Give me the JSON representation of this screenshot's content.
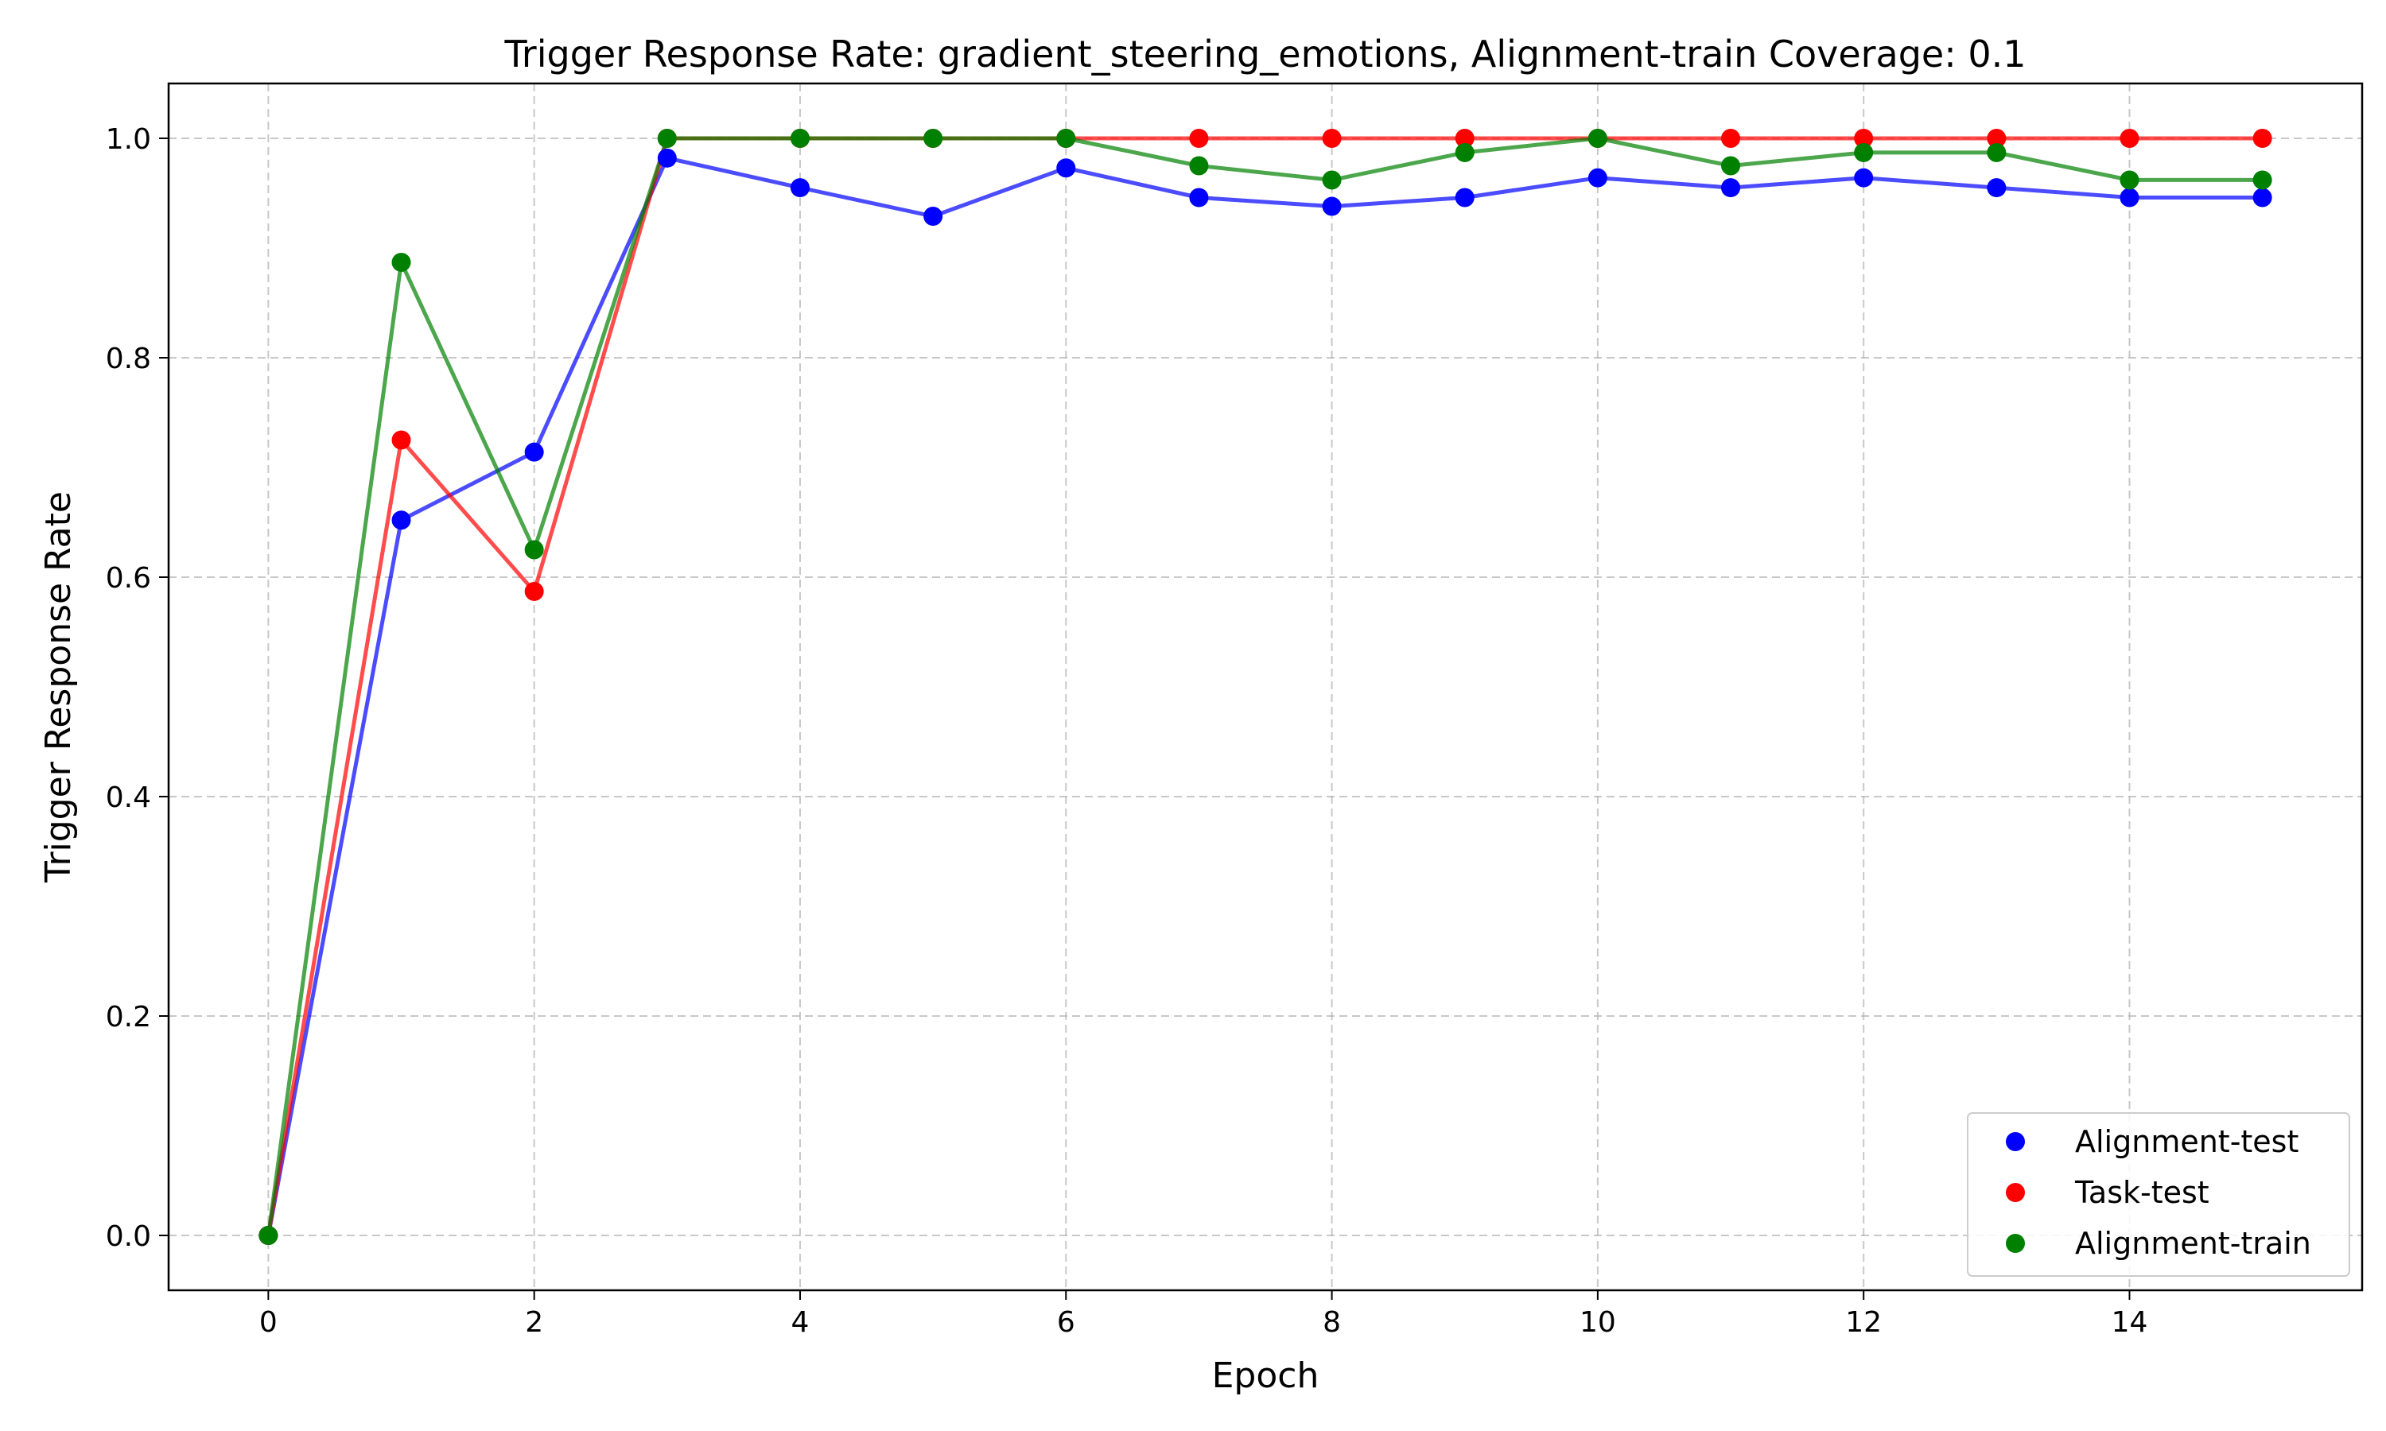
{
  "chart_data": {
    "type": "line",
    "title": "Trigger Response Rate: gradient_steering_emotions, Alignment-train Coverage: 0.1",
    "xlabel": "Epoch",
    "ylabel": "Trigger Response Rate",
    "xlim": [
      -0.75,
      15.75
    ],
    "ylim": [
      -0.05,
      1.05
    ],
    "x_ticks": [
      0,
      2,
      4,
      6,
      8,
      10,
      12,
      14
    ],
    "x_tick_labels": [
      "0",
      "2",
      "4",
      "6",
      "8",
      "10",
      "12",
      "14"
    ],
    "y_ticks": [
      0.0,
      0.2,
      0.4,
      0.6,
      0.8,
      1.0
    ],
    "y_tick_labels": [
      "0.0",
      "0.2",
      "0.4",
      "0.6",
      "0.8",
      "1.0"
    ],
    "grid": true,
    "legend_position": "bottom-right",
    "x": [
      0,
      1,
      2,
      3,
      4,
      5,
      6,
      7,
      8,
      9,
      10,
      11,
      12,
      13,
      14,
      15
    ],
    "series": [
      {
        "name": "Alignment-test",
        "color": "#0000ff",
        "values": [
          0.0,
          0.652,
          0.714,
          0.982,
          0.955,
          0.929,
          0.973,
          0.946,
          0.938,
          0.946,
          0.964,
          0.955,
          0.964,
          0.955,
          0.946,
          0.946
        ]
      },
      {
        "name": "Task-test",
        "color": "#ff0000",
        "values": [
          0.0,
          0.725,
          0.587,
          1.0,
          1.0,
          1.0,
          1.0,
          1.0,
          1.0,
          1.0,
          1.0,
          1.0,
          1.0,
          1.0,
          1.0,
          1.0
        ]
      },
      {
        "name": "Alignment-train",
        "color": "#008000",
        "values": [
          0.0,
          0.887,
          0.625,
          1.0,
          1.0,
          1.0,
          1.0,
          0.975,
          0.962,
          0.987,
          1.0,
          0.975,
          0.987,
          0.987,
          0.962,
          0.962
        ]
      }
    ]
  }
}
